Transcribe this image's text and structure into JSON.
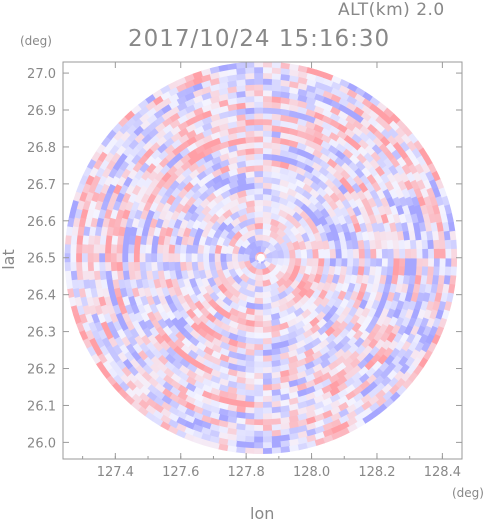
{
  "header": {
    "altitude_label": "ALT(km) 2.0",
    "timestamp": "2017/10/24 15:16:30"
  },
  "axes": {
    "x_unit": "(deg)",
    "y_unit": "(deg)",
    "x_label": "lon",
    "y_label": "lat"
  },
  "colors": {
    "positive": "#ff9fa6",
    "negative": "#a6a6ff",
    "neutral": "#f4f4ff",
    "frame": "#9a9a9a"
  },
  "chart_data": {
    "type": "heatmap",
    "title": "2017/10/24 15:16:30",
    "subtitle": "ALT(km) 2.0",
    "xlabel": "lon",
    "ylabel": "lat",
    "x_unit": "(deg)",
    "y_unit": "(deg)",
    "xlim": [
      127.24,
      128.46
    ],
    "ylim": [
      25.955,
      27.03
    ],
    "x_ticks": [
      127.4,
      127.6,
      127.8,
      128.0,
      128.2,
      128.4
    ],
    "x_tick_labels": [
      "127.4",
      "127.6",
      "127.8",
      "128.0",
      "128.2",
      "128.4"
    ],
    "y_ticks": [
      26.0,
      26.1,
      26.2,
      26.3,
      26.4,
      26.5,
      26.6,
      26.7,
      26.8,
      26.9,
      27.0
    ],
    "y_tick_labels": [
      "26.0",
      "26.1",
      "26.2",
      "26.3",
      "26.4",
      "26.5",
      "26.6",
      "26.7",
      "26.8",
      "26.9",
      "27.0"
    ],
    "scan_center": [
      127.845,
      26.5
    ],
    "scan_radius_deg": [
      0.6,
      0.54
    ],
    "grid": false,
    "legend": "none"
  }
}
